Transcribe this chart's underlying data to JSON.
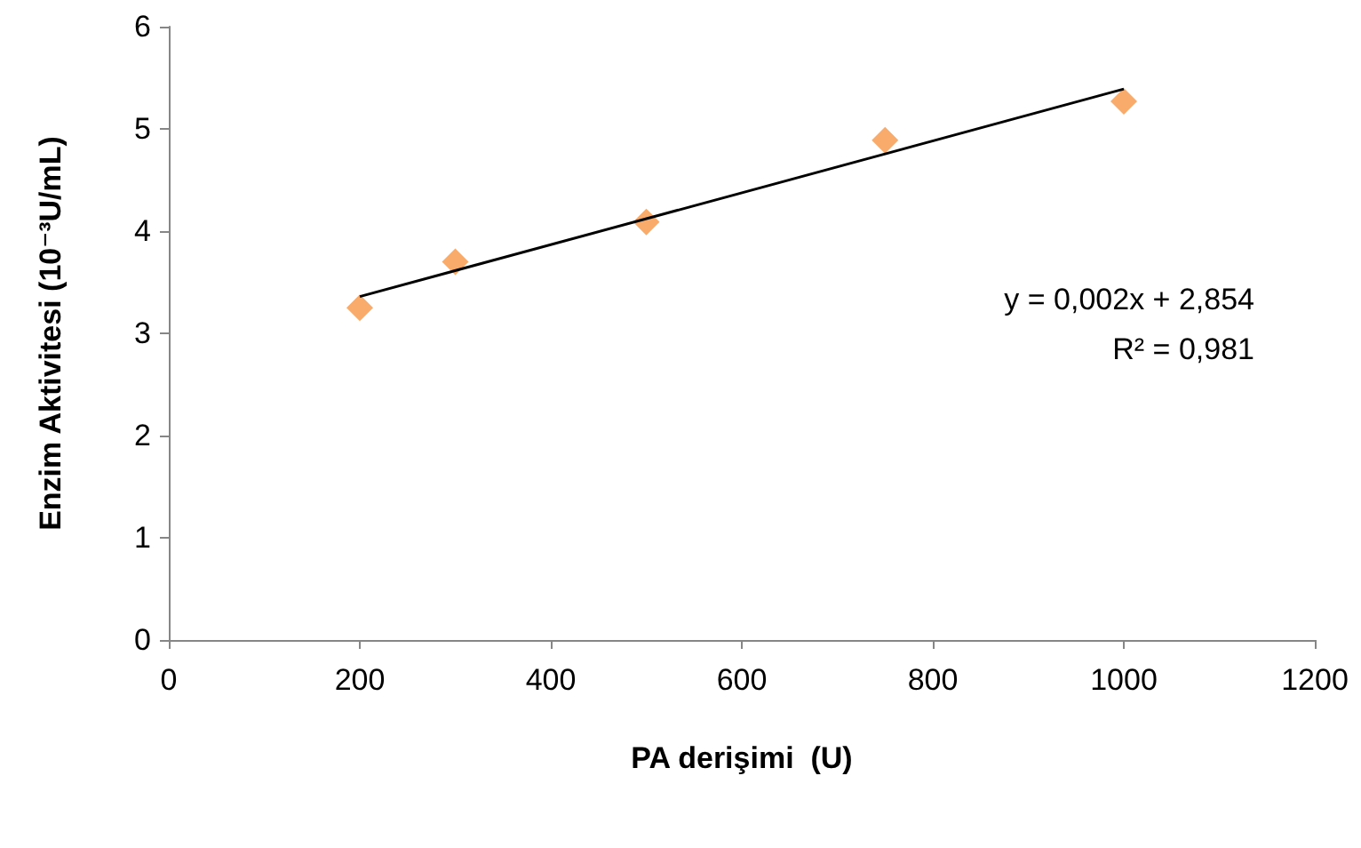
{
  "chart_data": {
    "type": "scatter",
    "xlabel": "PA derişimi  (U)",
    "ylabel": "Enzim Aktivitesi (10⁻³U/mL)",
    "series": [
      {
        "color": "#f79646",
        "x": [
          200,
          300,
          500,
          750,
          1000
        ],
        "values": [
          3.25,
          3.7,
          4.09,
          4.89,
          5.27
        ],
        "marker": "diamond"
      },
      {
        "type": "line",
        "color": "#000000",
        "x": [
          200,
          1000
        ],
        "values": [
          3.36,
          5.39
        ],
        "marker": "none"
      }
    ],
    "xlim": [
      0,
      1200
    ],
    "xticks": [
      0,
      200,
      400,
      600,
      800,
      1000,
      1200
    ],
    "ylim": [
      0,
      6
    ],
    "yticks": [
      0,
      1,
      2,
      3,
      4,
      5,
      6
    ],
    "grid": false,
    "annotations": [
      "y = 0,002x + 2,854",
      "R² = 0,981"
    ]
  }
}
